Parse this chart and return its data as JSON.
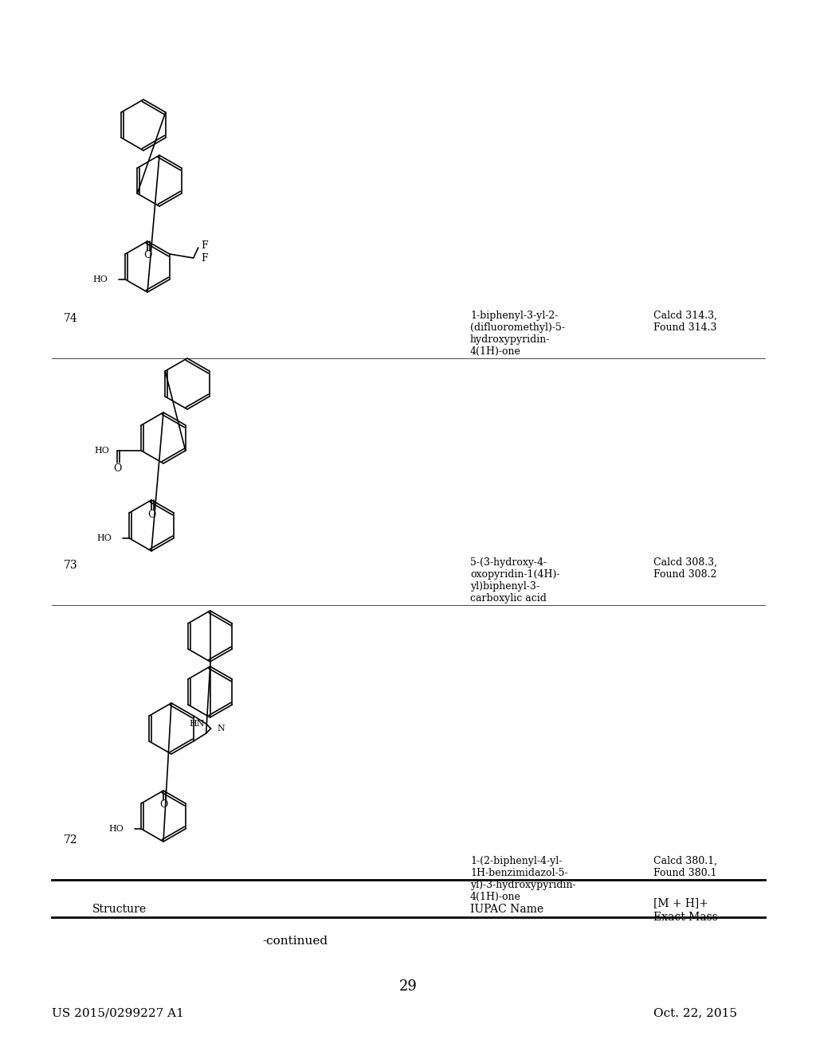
{
  "patent_number": "US 2015/0299227 A1",
  "date": "Oct. 22, 2015",
  "page_number": "29",
  "continued_label": "-continued",
  "col_headers": [
    "Structure",
    "IUPAC Name",
    "Exact Mass\n[M + H]+"
  ],
  "entries": [
    {
      "num": "72",
      "iupac": "1-(2-biphenyl-4-yl-\n1H-benzimidazol-5-\nyl)-3-hydroxypyridin-\n4(1H)-one",
      "mass": "Calcd 380.1,\nFound 380.1"
    },
    {
      "num": "73",
      "iupac": "5-(3-hydroxy-4-\noxopyridin-1(4H)-\nyl)biphenyl-3-\ncarboxylic acid",
      "mass": "Calcd 308.3,\nFound 308.2"
    },
    {
      "num": "74",
      "iupac": "1-biphenyl-3-yl-2-\n(difluoromethyl)-5-\nhydroxypyridin-\n4(1H)-one",
      "mass": "Calcd 314.3,\nFound 314.3"
    }
  ],
  "bg_color": "#ffffff",
  "text_color": "#000000",
  "line_color": "#000000"
}
